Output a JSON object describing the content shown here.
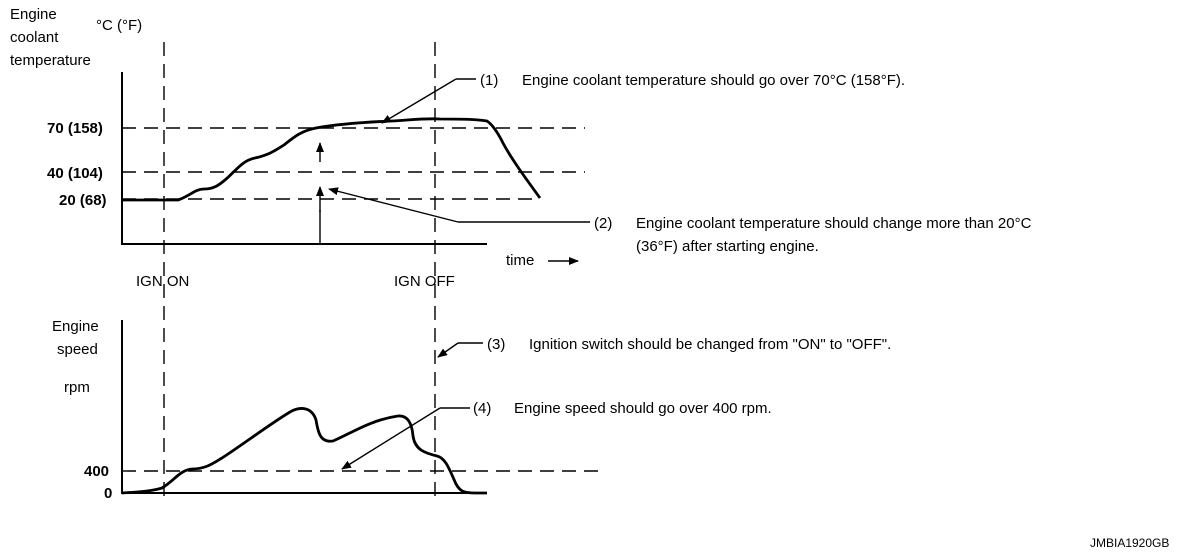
{
  "top_chart": {
    "y_axis_label": [
      "Engine",
      "coolant",
      "temperature"
    ],
    "y_unit": "°C (°F)",
    "ticks": [
      "70 (158)",
      "40 (104)",
      "20 (68)"
    ],
    "x_axis_label": "time"
  },
  "markers": {
    "ign_on": "IGN ON",
    "ign_off": "IGN OFF"
  },
  "bottom_chart": {
    "y_axis_label": [
      "Engine",
      "speed"
    ],
    "y_unit": "rpm",
    "ticks": [
      "400",
      "0"
    ]
  },
  "callouts": [
    {
      "id": "(1)",
      "text": "Engine coolant temperature should go over 70°C (158°F)."
    },
    {
      "id": "(2)",
      "text": [
        "Engine coolant temperature should change more than 20°C",
        "(36°F) after starting engine."
      ]
    },
    {
      "id": "(3)",
      "text": "Ignition switch should be changed from \"ON\" to \"OFF\"."
    },
    {
      "id": "(4)",
      "text": "Engine speed should go over 400 rpm."
    }
  ],
  "figure_code": "JMBIA1920GB",
  "colors": {
    "ink": "#000000",
    "background": "#ffffff"
  }
}
